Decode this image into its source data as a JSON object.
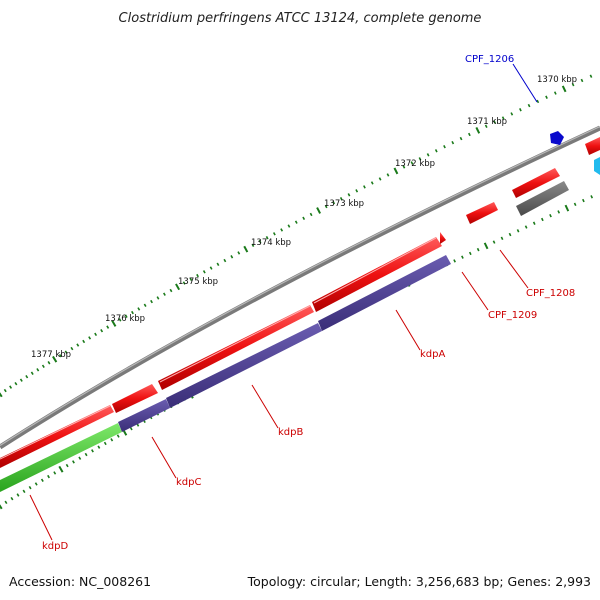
{
  "title": "Clostridium perfringens ATCC 13124, complete genome",
  "footer": {
    "accession": "Accession: NC_008261",
    "summary": "Topology: circular; Length: 3,256,683 bp; Genes: 2,993"
  },
  "ticks": [
    "1370 kbp",
    "1371 kbp",
    "1372 kbp",
    "1373 kbp",
    "1374 kbp",
    "1375 kbp",
    "1376 kbp",
    "1377 kbp"
  ],
  "genes": [
    {
      "name": "CPF_1206",
      "color": "#0000cc"
    },
    {
      "name": "CPF_1208",
      "color": "#cc0000"
    },
    {
      "name": "CPF_1209",
      "color": "#cc0000"
    },
    {
      "name": "kdpA",
      "color": "#cc0000"
    },
    {
      "name": "kdpB",
      "color": "#cc0000"
    },
    {
      "name": "kdpC",
      "color": "#cc0000"
    },
    {
      "name": "kdpD",
      "color": "#cc0000"
    }
  ],
  "colors": {
    "cds_forward": "#ee1111",
    "cds_reverse": "#4b3d8f",
    "cds_kdpD": "#44cc33",
    "backbone": "#7a7a7a",
    "tick_marks": "#1a7a1a",
    "small_gene_blue": "#0a0acc",
    "small_gene_cyan": "#22bbee",
    "grey_gene": "#555555"
  }
}
